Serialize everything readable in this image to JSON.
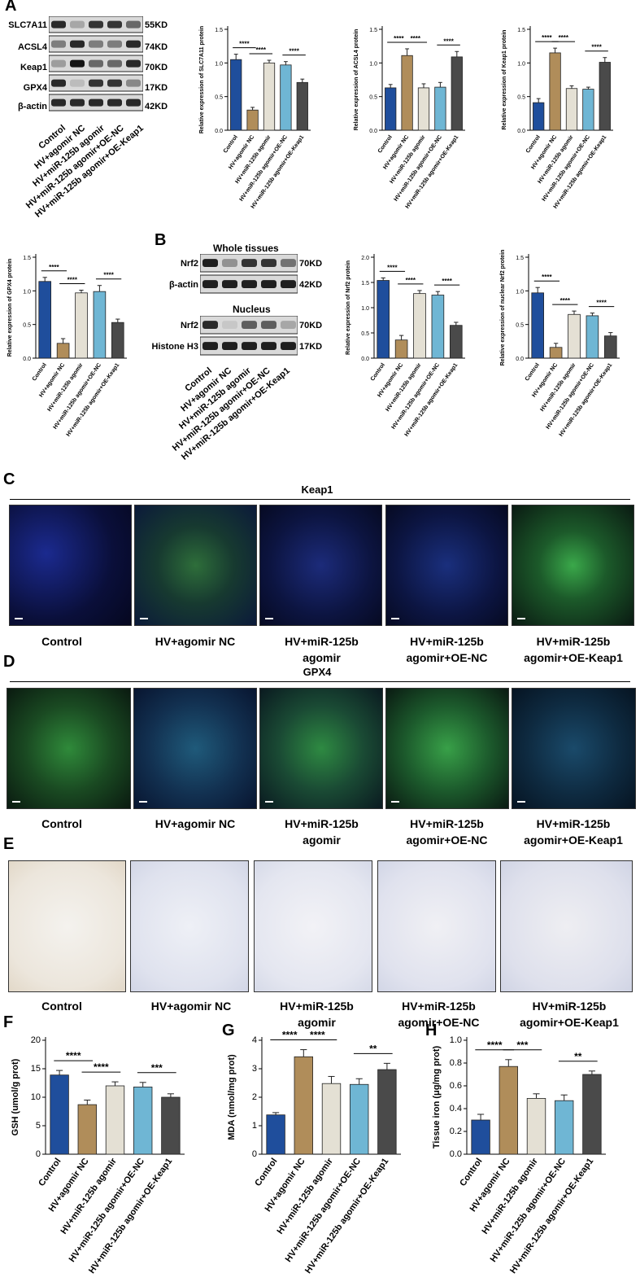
{
  "panel_labels": [
    "A",
    "B",
    "C",
    "D",
    "E",
    "F",
    "G",
    "H"
  ],
  "groups": [
    "Control",
    "HV+agomir NC",
    "HV+miR-125b agomir",
    "HV+miR-125b agomir+OE-NC",
    "HV+miR-125b agomir+OE-Keap1"
  ],
  "blot_A": {
    "proteins": [
      "SLC7A11",
      "ACSL4",
      "Keap1",
      "GPX4",
      "β-actin"
    ],
    "kd": [
      "55KD",
      "74KD",
      "70KD",
      "17KD",
      "42KD"
    ]
  },
  "blot_B": {
    "whole_title": "Whole  tissues",
    "nucleus_title": "Nucleus",
    "whole_proteins": [
      "Nrf2",
      "β-actin"
    ],
    "whole_kd": [
      "70KD",
      "42KD"
    ],
    "nucleus_proteins": [
      "Nrf2",
      "Histone H3"
    ],
    "nucleus_kd": [
      "70KD",
      "17KD"
    ]
  },
  "section_C": {
    "title": "Keap1",
    "captions": [
      "Control",
      "HV+agomir NC",
      "HV+miR-125b\nagomir",
      "HV+miR-125b\nagomir+OE-NC",
      "HV+miR-125b\nagomir+OE-Keap1"
    ]
  },
  "section_D": {
    "title": "GPX4",
    "captions": [
      "Control",
      "HV+agomir NC",
      "HV+miR-125b\nagomir",
      "HV+miR-125b\nagomir+OE-NC",
      "HV+miR-125b\nagomir+OE-Keap1"
    ]
  },
  "section_E": {
    "captions": [
      "Control",
      "HV+agomir NC",
      "HV+miR-125b\nagomir",
      "HV+miR-125b\nagomir+OE-NC",
      "HV+miR-125b\nagomir+OE-Keap1"
    ]
  },
  "colors": {
    "control": "#1f4e9c",
    "agomir_nc": "#b08d5a",
    "agomir": "#e4e0d4",
    "oe_nc": "#6fb6d4",
    "oe_keap1": "#4a4a4a"
  },
  "chart_data": [
    {
      "id": "slc7a11",
      "type": "bar",
      "ylabel": "Relative expression of SLC7A11 protein",
      "categories": [
        "Control",
        "HV+agomir NC",
        "HV+miR-125b agomir",
        "HV+miR-125b agomir+OE-NC",
        "HV+miR-125b agomir+OE-Keap1"
      ],
      "values": [
        1.05,
        0.3,
        1.0,
        0.97,
        0.71
      ],
      "errors": [
        0.08,
        0.04,
        0.04,
        0.05,
        0.05
      ],
      "ylim": [
        0,
        1.5
      ],
      "ticks": [
        "0.0",
        "0.5",
        "1.0",
        "1.5"
      ],
      "sig": [
        {
          "a": 0,
          "b": 1,
          "label": "****"
        },
        {
          "a": 1,
          "b": 2,
          "label": "****"
        },
        {
          "a": 3,
          "b": 4,
          "label": "****"
        }
      ]
    },
    {
      "id": "acsl4",
      "type": "bar",
      "ylabel": "Relative expression of ACSL4 protein",
      "categories": [
        "Control",
        "HV+agomir NC",
        "HV+miR-125b agomir",
        "HV+miR-125b agomir+OE-NC",
        "HV+miR-125b agomir+OE-Keap1"
      ],
      "values": [
        0.63,
        1.11,
        0.63,
        0.64,
        1.09
      ],
      "errors": [
        0.05,
        0.1,
        0.06,
        0.07,
        0.08
      ],
      "ylim": [
        0,
        1.5
      ],
      "ticks": [
        "0.0",
        "0.5",
        "1.0",
        "1.5"
      ],
      "sig": [
        {
          "a": 0,
          "b": 1,
          "label": "****"
        },
        {
          "a": 1,
          "b": 2,
          "label": "****"
        },
        {
          "a": 3,
          "b": 4,
          "label": "****"
        }
      ]
    },
    {
      "id": "keap1",
      "type": "bar",
      "ylabel": "Relative expression of Keap1 protein",
      "categories": [
        "Control",
        "HV+agomir NC",
        "HV+miR-125b agomir",
        "HV+miR-125b agomir+OE-NC",
        "HV+miR-125b agomir+OE-Keap1"
      ],
      "values": [
        0.41,
        1.15,
        0.62,
        0.61,
        1.01
      ],
      "errors": [
        0.06,
        0.07,
        0.04,
        0.03,
        0.07
      ],
      "ylim": [
        0,
        1.5
      ],
      "ticks": [
        "0.0",
        "0.5",
        "1.0",
        "1.5"
      ],
      "sig": [
        {
          "a": 0,
          "b": 1,
          "label": "****"
        },
        {
          "a": 1,
          "b": 2,
          "label": "****"
        },
        {
          "a": 3,
          "b": 4,
          "label": "****"
        }
      ]
    },
    {
      "id": "gpx4",
      "type": "bar",
      "ylabel": "Relative expression of GPX4 protein",
      "categories": [
        "Control",
        "HV+agomir NC",
        "HV+miR-125b agomir",
        "HV+miR-125b agomir+OE-NC",
        "HV+miR-125b agomir+OE-Keap1"
      ],
      "values": [
        1.14,
        0.22,
        0.97,
        0.99,
        0.53
      ],
      "errors": [
        0.06,
        0.07,
        0.04,
        0.09,
        0.05
      ],
      "ylim": [
        0,
        1.5
      ],
      "ticks": [
        "0.0",
        "0.5",
        "1.0",
        "1.5"
      ],
      "sig": [
        {
          "a": 0,
          "b": 1,
          "label": "****"
        },
        {
          "a": 1,
          "b": 2,
          "label": "****"
        },
        {
          "a": 3,
          "b": 4,
          "label": "****"
        }
      ]
    },
    {
      "id": "nrf2",
      "type": "bar",
      "ylabel": "Relative expression of Nrf2 protein",
      "categories": [
        "Control",
        "HV+agomir NC",
        "HV+miR-125b agomir",
        "HV+miR-125b agomir+OE-NC",
        "HV+miR-125b agomir+OE-Keap1"
      ],
      "values": [
        1.54,
        0.36,
        1.28,
        1.25,
        0.65
      ],
      "errors": [
        0.05,
        0.09,
        0.06,
        0.07,
        0.06
      ],
      "ylim": [
        0,
        2.0
      ],
      "ticks": [
        "0.0",
        "0.5",
        "1.0",
        "1.5",
        "2.0"
      ],
      "sig": [
        {
          "a": 0,
          "b": 1,
          "label": "****"
        },
        {
          "a": 1,
          "b": 2,
          "label": "****"
        },
        {
          "a": 3,
          "b": 4,
          "label": "****"
        }
      ]
    },
    {
      "id": "nuc_nrf2",
      "type": "bar",
      "ylabel": "Relative expression of nuclear Nrf2 protein",
      "categories": [
        "Control",
        "HV+agomir NC",
        "HV+miR-125b agomir",
        "HV+miR-125b agomir+OE-NC",
        "HV+miR-125b agomir+OE-Keap1"
      ],
      "values": [
        0.97,
        0.16,
        0.65,
        0.63,
        0.33
      ],
      "errors": [
        0.08,
        0.06,
        0.05,
        0.04,
        0.05
      ],
      "ylim": [
        0,
        1.5
      ],
      "ticks": [
        "0.0",
        "0.5",
        "1.0",
        "1.5"
      ],
      "sig": [
        {
          "a": 0,
          "b": 1,
          "label": "****"
        },
        {
          "a": 1,
          "b": 2,
          "label": "****"
        },
        {
          "a": 3,
          "b": 4,
          "label": "****"
        }
      ]
    },
    {
      "id": "gsh",
      "type": "bar",
      "ylabel": "GSH (umol/g prot)",
      "categories": [
        "Control",
        "HV+agomir NC",
        "HV+miR-125b agomir",
        "HV+miR-125b agomir+OE-NC",
        "HV+miR-125b agomir+OE-Keap1"
      ],
      "values": [
        13.9,
        8.7,
        12.0,
        11.8,
        10.0
      ],
      "errors": [
        0.8,
        0.8,
        0.7,
        0.8,
        0.6
      ],
      "ylim": [
        0,
        20
      ],
      "ticks": [
        "0",
        "5",
        "10",
        "15",
        "20"
      ],
      "sig": [
        {
          "a": 0,
          "b": 1,
          "label": "****"
        },
        {
          "a": 1,
          "b": 2,
          "label": "****"
        },
        {
          "a": 3,
          "b": 4,
          "label": "***"
        }
      ]
    },
    {
      "id": "mda",
      "type": "bar",
      "ylabel": "MDA (nmol/mg prot)",
      "categories": [
        "Control",
        "HV+agomir NC",
        "HV+miR-125b agomir",
        "HV+miR-125b agomir+OE-NC",
        "HV+miR-125b agomir+OE-Keap1"
      ],
      "values": [
        1.38,
        3.42,
        2.48,
        2.45,
        2.97
      ],
      "errors": [
        0.08,
        0.25,
        0.25,
        0.2,
        0.22
      ],
      "ylim": [
        0,
        4
      ],
      "ticks": [
        "0",
        "1",
        "2",
        "3",
        "4"
      ],
      "sig": [
        {
          "a": 0,
          "b": 1,
          "label": "****"
        },
        {
          "a": 1,
          "b": 2,
          "label": "****"
        },
        {
          "a": 3,
          "b": 4,
          "label": "**"
        }
      ]
    },
    {
      "id": "iron",
      "type": "bar",
      "ylabel": "Tissue iron (μg/mg prot)",
      "categories": [
        "Control",
        "HV+agomir NC",
        "HV+miR-125b agomir",
        "HV+miR-125b agomir+OE-NC",
        "HV+miR-125b agomir+OE-Keap1"
      ],
      "values": [
        0.3,
        0.77,
        0.49,
        0.47,
        0.7
      ],
      "errors": [
        0.05,
        0.06,
        0.04,
        0.05,
        0.03
      ],
      "ylim": [
        0,
        1.0
      ],
      "ticks": [
        "0.0",
        "0.2",
        "0.4",
        "0.6",
        "0.8",
        "1.0"
      ],
      "sig": [
        {
          "a": 0,
          "b": 1,
          "label": "****"
        },
        {
          "a": 1,
          "b": 2,
          "label": "***"
        },
        {
          "a": 3,
          "b": 4,
          "label": "**"
        }
      ]
    }
  ]
}
